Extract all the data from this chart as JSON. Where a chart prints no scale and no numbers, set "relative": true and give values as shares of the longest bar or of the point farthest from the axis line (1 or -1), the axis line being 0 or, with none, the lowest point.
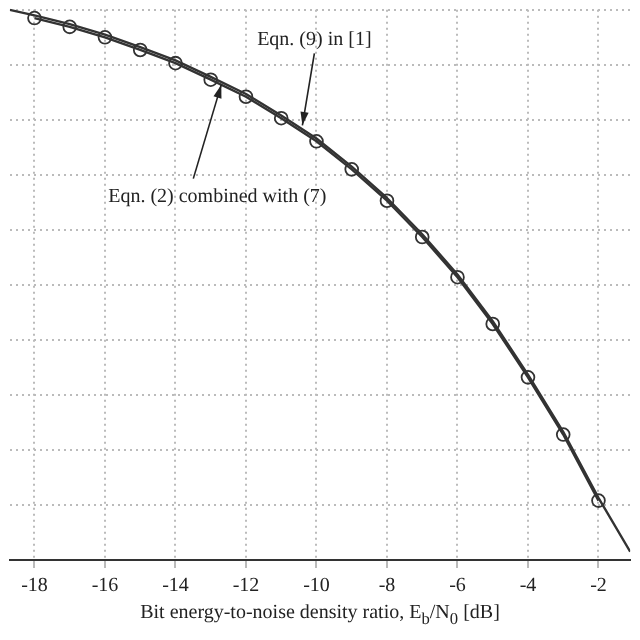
{
  "chart_data": {
    "type": "line",
    "relative": true,
    "xlabel": "Bit energy-to-noise density ratio, E$_{b}$/N$_{0}$ [dB]",
    "xlim": [
      -18.7,
      -1.1
    ],
    "xticks": [
      -18,
      -16,
      -14,
      -12,
      -10,
      -8,
      -6,
      -4,
      -2
    ],
    "grid": true,
    "legend": false,
    "line_style": "solid",
    "series": [
      {
        "color": "#333333",
        "marker": "none",
        "x": [
          -18.7,
          -18,
          -17,
          -16,
          -15,
          -14,
          -13,
          -12,
          -11,
          -10,
          -9,
          -8,
          -7,
          -6,
          -5,
          -4,
          -3,
          -2,
          -1.1
        ],
        "values": [
          1,
          0.99,
          0.974,
          0.955,
          0.932,
          0.908,
          0.878,
          0.847,
          0.808,
          0.766,
          0.715,
          0.658,
          0.592,
          0.519,
          0.434,
          0.337,
          0.233,
          0.113,
          0.015
        ]
      },
      {
        "color": "#333333",
        "marker": "circle",
        "x": [
          -18,
          -17,
          -16,
          -15,
          -14,
          -13,
          -12,
          -11,
          -10,
          -9,
          -8,
          -7,
          -6,
          -5,
          -4,
          -3,
          -2
        ],
        "values": [
          0.985,
          0.969,
          0.95,
          0.927,
          0.903,
          0.873,
          0.842,
          0.803,
          0.761,
          0.71,
          0.653,
          0.587,
          0.514,
          0.429,
          0.332,
          0.228,
          0.108
        ]
      }
    ],
    "annotations": [
      {
        "text": "Eqn. (9) in [1]",
        "x": -10.4,
        "y": 0.79
      },
      {
        "text": "Eqn. (2) combined with (7)",
        "x": -12.7,
        "y": 0.864
      }
    ]
  }
}
